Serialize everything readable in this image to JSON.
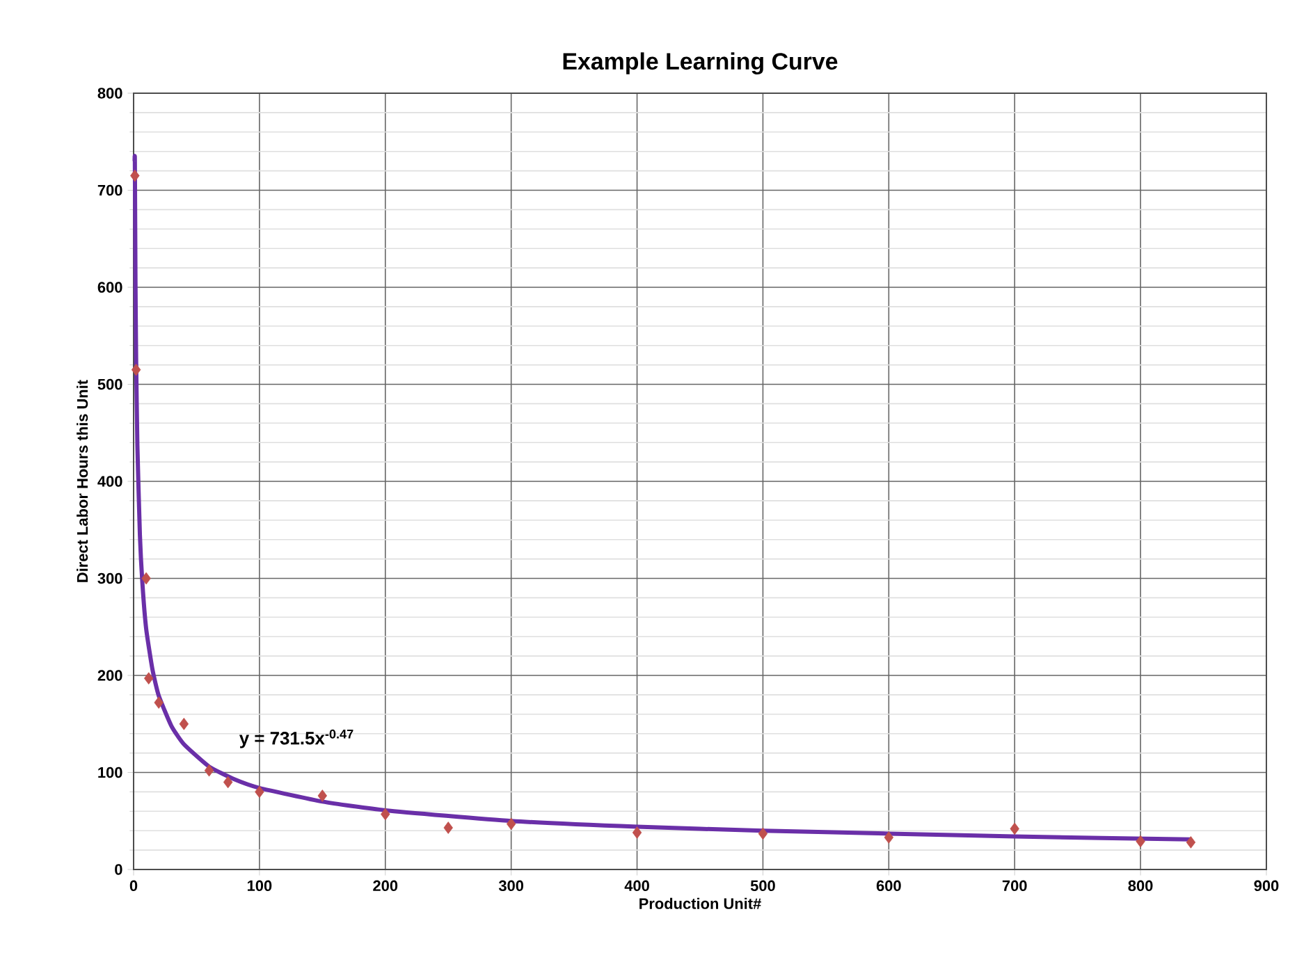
{
  "chart_data": {
    "type": "scatter",
    "title": "Example Learning Curve",
    "xlabel": "Production Unit#",
    "ylabel": "Direct Labor Hours this Unit",
    "xlim": [
      0,
      900
    ],
    "ylim": [
      0,
      800
    ],
    "xticks": [
      0,
      100,
      200,
      300,
      400,
      500,
      600,
      700,
      800,
      900
    ],
    "yticks": [
      0,
      100,
      200,
      300,
      400,
      500,
      600,
      700,
      800
    ],
    "grid": true,
    "marker": "diamond",
    "annotations": [
      "y = 731.5x$^{-0.47}$"
    ],
    "series": [
      {
        "color": "#c0504d",
        "x": [
          1,
          2,
          10,
          12,
          20,
          40,
          60,
          75,
          100,
          150,
          200,
          250,
          300,
          400,
          500,
          600,
          700,
          800,
          840
        ],
        "values": [
          715,
          515,
          300,
          197,
          172,
          150,
          102,
          90,
          80,
          76,
          57,
          43,
          47,
          38,
          37,
          33,
          42,
          29,
          28
        ]
      },
      {
        "type": "line",
        "color": "#6a2fa8",
        "marker": "none",
        "line_style": "solid",
        "x": [
          0.8,
          1,
          1.5,
          2,
          3,
          5,
          7,
          10,
          15,
          20,
          30,
          40,
          60,
          80,
          100,
          150,
          200,
          300,
          400,
          500,
          600,
          700,
          840
        ],
        "values": [
          730,
          731,
          605,
          528,
          437,
          345,
          295,
          248,
          206,
          179,
          148,
          129,
          106,
          93,
          84,
          70,
          61,
          50,
          44,
          40,
          37,
          34,
          31
        ]
      }
    ]
  }
}
